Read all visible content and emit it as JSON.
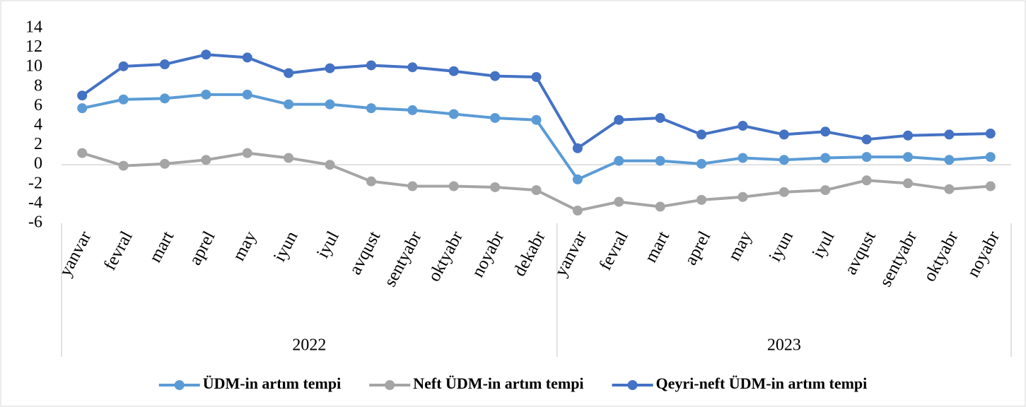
{
  "chart_data": {
    "type": "line",
    "groups": [
      {
        "label": "2022",
        "categories": [
          "yanvar",
          "fevral",
          "mart",
          "aprel",
          "may",
          "iyun",
          "iyul",
          "avqust",
          "sentyabr",
          "oktyabr",
          "noyabr",
          "dekabr"
        ]
      },
      {
        "label": "2023",
        "categories": [
          "yanvar",
          "fevral",
          "mart",
          "aprel",
          "may",
          "iyun",
          "iyul",
          "avqust",
          "sentyabr",
          "oktyabr",
          "noyabr"
        ]
      }
    ],
    "series": [
      {
        "name": "ÜDM-in artım tempi",
        "color": "#5b9bd5",
        "values": [
          5.8,
          6.7,
          6.8,
          7.2,
          7.2,
          6.2,
          6.2,
          5.8,
          5.6,
          5.2,
          4.8,
          4.6,
          -1.5,
          0.4,
          0.4,
          0.1,
          0.7,
          0.5,
          0.7,
          0.8,
          0.8,
          0.5,
          0.8
        ]
      },
      {
        "name": "Neft ÜDM-in artım tempi",
        "color": "#a5a5a5",
        "values": [
          1.2,
          -0.1,
          0.1,
          0.5,
          1.2,
          0.7,
          0.0,
          -1.7,
          -2.2,
          -2.2,
          -2.3,
          -2.6,
          -4.7,
          -3.8,
          -4.3,
          -3.6,
          -3.3,
          -2.8,
          -2.6,
          -1.6,
          -1.9,
          -2.5,
          -2.2
        ]
      },
      {
        "name": "Qeyri-neft ÜDM-in artım tempi",
        "color": "#4472c4",
        "values": [
          7.1,
          10.1,
          10.3,
          11.3,
          11.0,
          9.4,
          9.9,
          10.2,
          10.0,
          9.6,
          9.1,
          9.0,
          1.7,
          4.6,
          4.8,
          3.1,
          4.0,
          3.1,
          3.4,
          2.6,
          3.0,
          3.1,
          3.2
        ]
      }
    ],
    "ylim": [
      -6,
      14
    ],
    "yticks": [
      -6,
      -4,
      -2,
      0,
      2,
      4,
      6,
      8,
      10,
      12,
      14
    ],
    "legend": "bottom"
  }
}
